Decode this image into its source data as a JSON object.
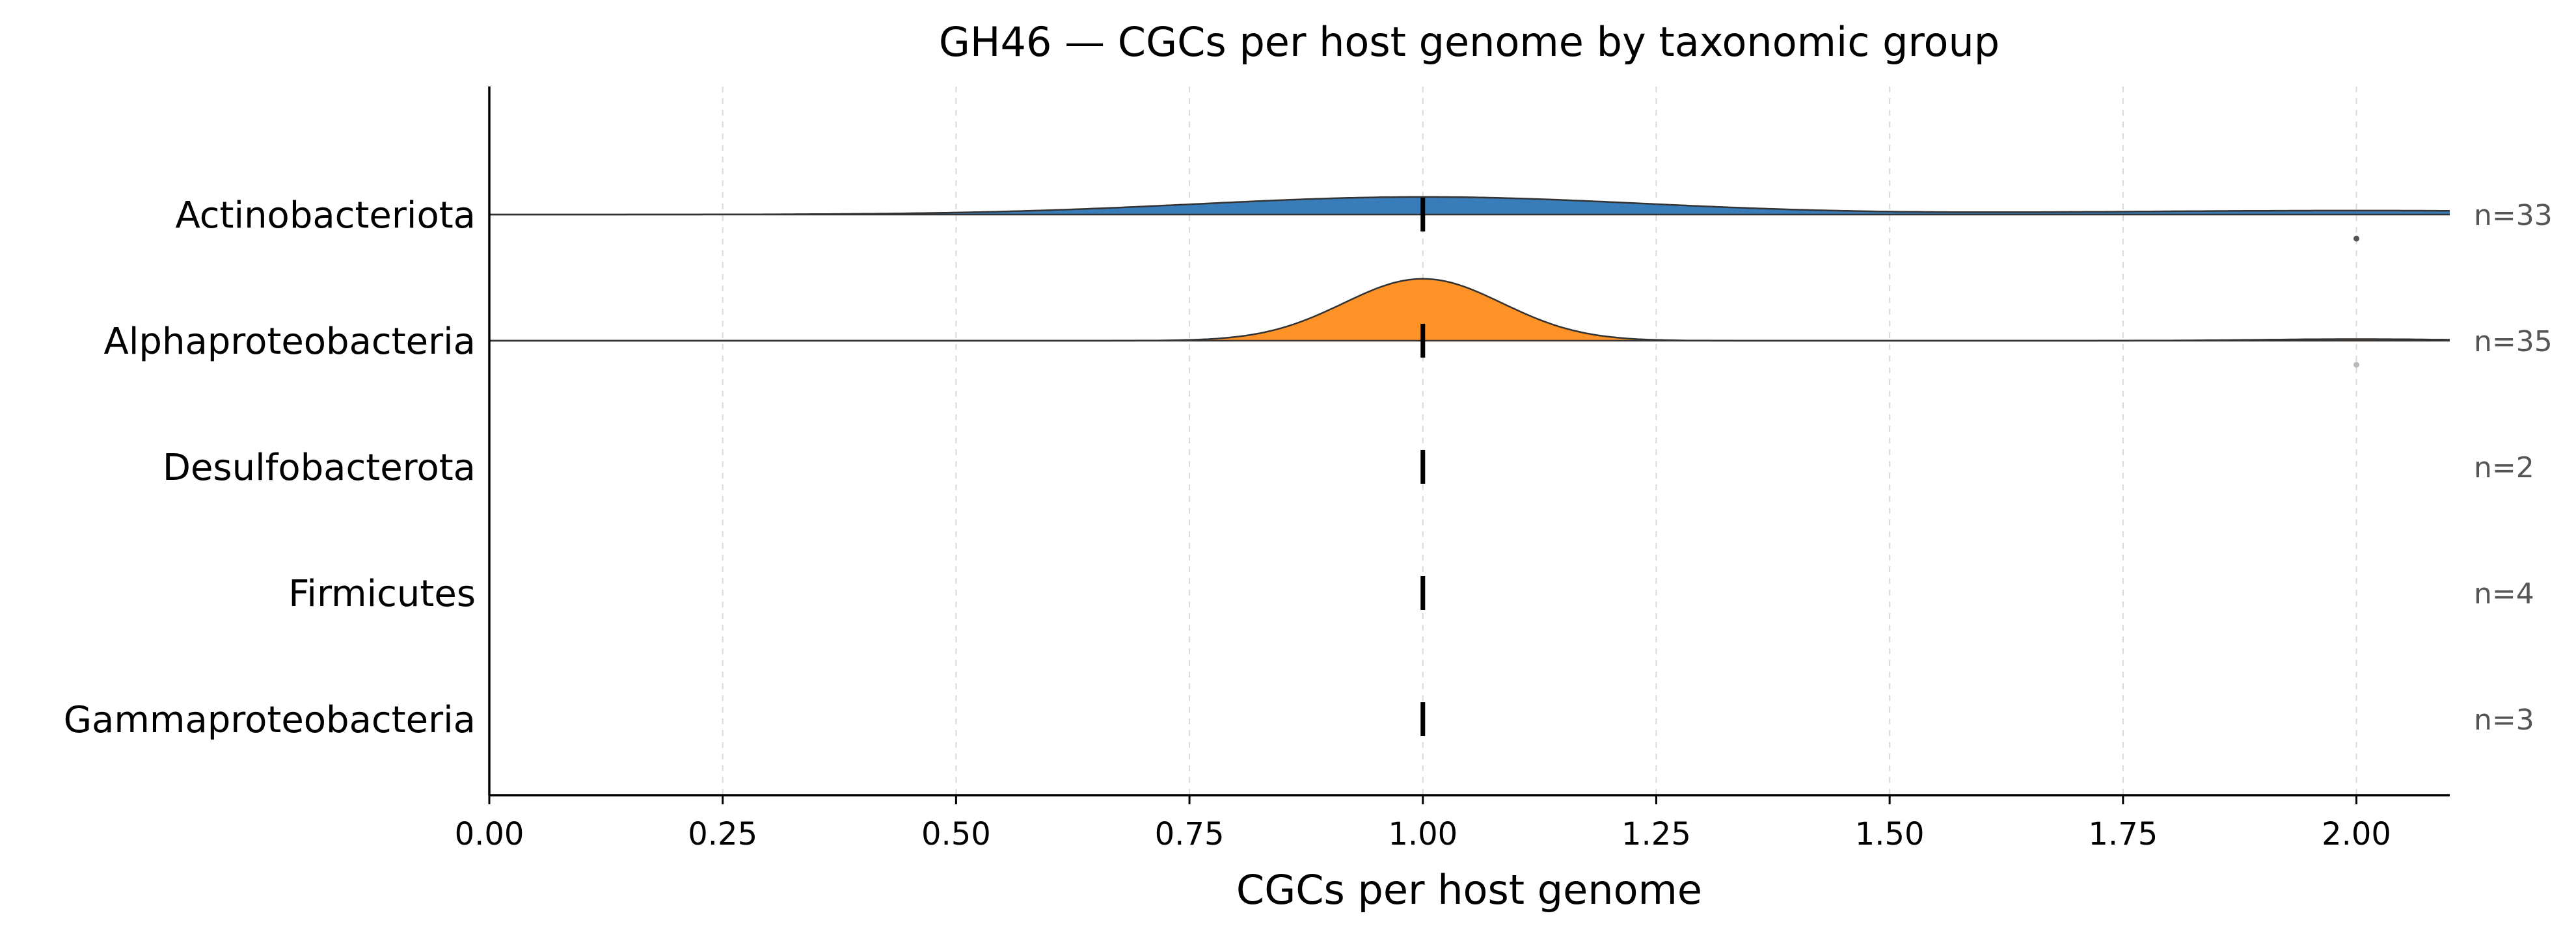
{
  "chart_data": {
    "type": "area",
    "subtype": "ridgeline",
    "title": "GH46 — CGCs per host genome by taxonomic group",
    "xlabel": "CGCs per host genome",
    "ylabel": "",
    "xlim": [
      0.0,
      2.1
    ],
    "x_ticks": [
      "0.00",
      "0.25",
      "0.50",
      "0.75",
      "1.00",
      "1.25",
      "1.50",
      "1.75",
      "2.00"
    ],
    "grid": "vertical dashed",
    "categories": [
      "Actinobacteriota",
      "Alphaproteobacteria",
      "Desulfobacterota",
      "Firmicutes",
      "Gammaproteobacteria"
    ],
    "series": [
      {
        "name": "Actinobacteriota",
        "n_label": "n=33",
        "n": 33,
        "color": "#2e75b6",
        "density": [
          {
            "mu": 1.0,
            "sigma": 0.24,
            "weight": 0.78
          },
          {
            "mu": 2.0,
            "sigma": 0.3,
            "weight": 0.22
          }
        ],
        "median": 1.0,
        "points": [
          2.0
        ]
      },
      {
        "name": "Alphaproteobacteria",
        "n_label": "n=35",
        "n": 35,
        "color": "#ff8c1a",
        "density": [
          {
            "mu": 1.0,
            "sigma": 0.085,
            "weight": 0.97
          },
          {
            "mu": 2.0,
            "sigma": 0.1,
            "weight": 0.03
          }
        ],
        "median": 1.0,
        "points": [
          2.0
        ]
      },
      {
        "name": "Desulfobacterota",
        "n_label": "n=2",
        "n": 2,
        "color": "#2ca02c",
        "density": [],
        "median": 1.0,
        "points": []
      },
      {
        "name": "Firmicutes",
        "n_label": "n=4",
        "n": 4,
        "color": "#d62728",
        "density": [],
        "median": 1.0,
        "points": []
      },
      {
        "name": "Gammaproteobacteria",
        "n_label": "n=3",
        "n": 3,
        "color": "#9467bd",
        "density": [],
        "median": 1.0,
        "points": []
      }
    ]
  }
}
